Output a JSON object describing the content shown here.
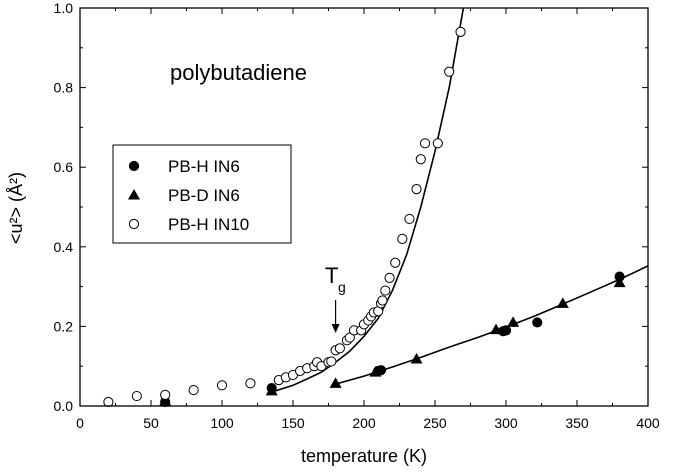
{
  "chart_data": {
    "type": "scatter",
    "xlabel": "temperature (K)",
    "ylabel": "<u²> (Å²)",
    "xlim": [
      0,
      400
    ],
    "ylim": [
      0.0,
      1.0
    ],
    "xticks": [
      "0",
      "50",
      "100",
      "150",
      "200",
      "250",
      "300",
      "350",
      "400"
    ],
    "yticks": [
      "0.0",
      "0.2",
      "0.4",
      "0.6",
      "0.8",
      "1.0"
    ],
    "grid": false,
    "legend_position": "left",
    "annotation": "polybutadiene",
    "tg_label": {
      "main": "T",
      "sub": "g",
      "x": 180
    },
    "series": [
      {
        "name": "PB-H IN6",
        "marker": "filled-circle",
        "points": [
          [
            60,
            0.01
          ],
          [
            135,
            0.045
          ],
          [
            210,
            0.088
          ],
          [
            212,
            0.09
          ],
          [
            298,
            0.188
          ],
          [
            300,
            0.19
          ],
          [
            322,
            0.21
          ],
          [
            380,
            0.325
          ]
        ]
      },
      {
        "name": "PB-D IN6",
        "marker": "filled-triangle",
        "points": [
          [
            60,
            0.012
          ],
          [
            135,
            0.038
          ],
          [
            180,
            0.057
          ],
          [
            208,
            0.085
          ],
          [
            237,
            0.118
          ],
          [
            293,
            0.192
          ],
          [
            305,
            0.21
          ],
          [
            340,
            0.258
          ],
          [
            380,
            0.31
          ]
        ]
      },
      {
        "name": "PB-H IN10",
        "marker": "open-circle",
        "points": [
          [
            20,
            0.01
          ],
          [
            40,
            0.025
          ],
          [
            60,
            0.028
          ],
          [
            80,
            0.04
          ],
          [
            100,
            0.052
          ],
          [
            120,
            0.057
          ],
          [
            140,
            0.065
          ],
          [
            145,
            0.072
          ],
          [
            150,
            0.078
          ],
          [
            155,
            0.088
          ],
          [
            160,
            0.095
          ],
          [
            165,
            0.1
          ],
          [
            167,
            0.11
          ],
          [
            170,
            0.1
          ],
          [
            175,
            0.11
          ],
          [
            177,
            0.112
          ],
          [
            180,
            0.14
          ],
          [
            183,
            0.145
          ],
          [
            188,
            0.165
          ],
          [
            190,
            0.172
          ],
          [
            193,
            0.19
          ],
          [
            198,
            0.19
          ],
          [
            200,
            0.205
          ],
          [
            203,
            0.215
          ],
          [
            205,
            0.225
          ],
          [
            207,
            0.235
          ],
          [
            210,
            0.238
          ],
          [
            212,
            0.258
          ],
          [
            213,
            0.265
          ],
          [
            215,
            0.29
          ],
          [
            218,
            0.322
          ],
          [
            222,
            0.36
          ],
          [
            227,
            0.42
          ],
          [
            232,
            0.47
          ],
          [
            237,
            0.545
          ],
          [
            240,
            0.62
          ],
          [
            243,
            0.66
          ],
          [
            252,
            0.66
          ],
          [
            260,
            0.84
          ],
          [
            268,
            0.94
          ]
        ]
      }
    ],
    "fit_curves": [
      {
        "points": [
          [
            135,
            0.035
          ],
          [
            150,
            0.052
          ],
          [
            160,
            0.068
          ],
          [
            170,
            0.085
          ],
          [
            180,
            0.11
          ],
          [
            190,
            0.138
          ],
          [
            200,
            0.175
          ],
          [
            210,
            0.22
          ],
          [
            220,
            0.29
          ],
          [
            230,
            0.38
          ],
          [
            240,
            0.5
          ],
          [
            250,
            0.64
          ],
          [
            260,
            0.8
          ],
          [
            270,
            1.0
          ]
        ]
      },
      {
        "points": [
          [
            180,
            0.055
          ],
          [
            200,
            0.075
          ],
          [
            220,
            0.098
          ],
          [
            240,
            0.122
          ],
          [
            260,
            0.148
          ],
          [
            280,
            0.172
          ],
          [
            300,
            0.198
          ],
          [
            320,
            0.226
          ],
          [
            340,
            0.256
          ],
          [
            360,
            0.287
          ],
          [
            380,
            0.318
          ],
          [
            400,
            0.352
          ]
        ]
      }
    ]
  }
}
